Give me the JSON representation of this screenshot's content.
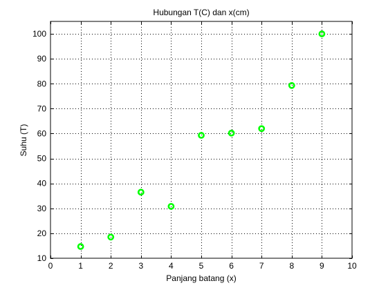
{
  "chart_data": {
    "type": "scatter",
    "title": "Hubungan T(C) dan x(cm)",
    "xlabel": "Panjang batang (x)",
    "ylabel": "Suhu (T)",
    "xlim": [
      0,
      10
    ],
    "ylim": [
      10,
      105
    ],
    "xticks": [
      0,
      1,
      2,
      3,
      4,
      5,
      6,
      7,
      8,
      9,
      10
    ],
    "yticks": [
      10,
      20,
      30,
      40,
      50,
      60,
      70,
      80,
      90,
      100
    ],
    "grid": true,
    "grid_style": "dotted",
    "marker": "circle",
    "marker_color": "#00ff00",
    "series": [
      {
        "x": [
          1,
          2,
          3,
          4,
          5,
          6,
          7,
          8,
          9
        ],
        "y": [
          14.7,
          18.5,
          36.5,
          30.8,
          59.3,
          60.2,
          62.0,
          79.3,
          100.0
        ]
      }
    ]
  }
}
